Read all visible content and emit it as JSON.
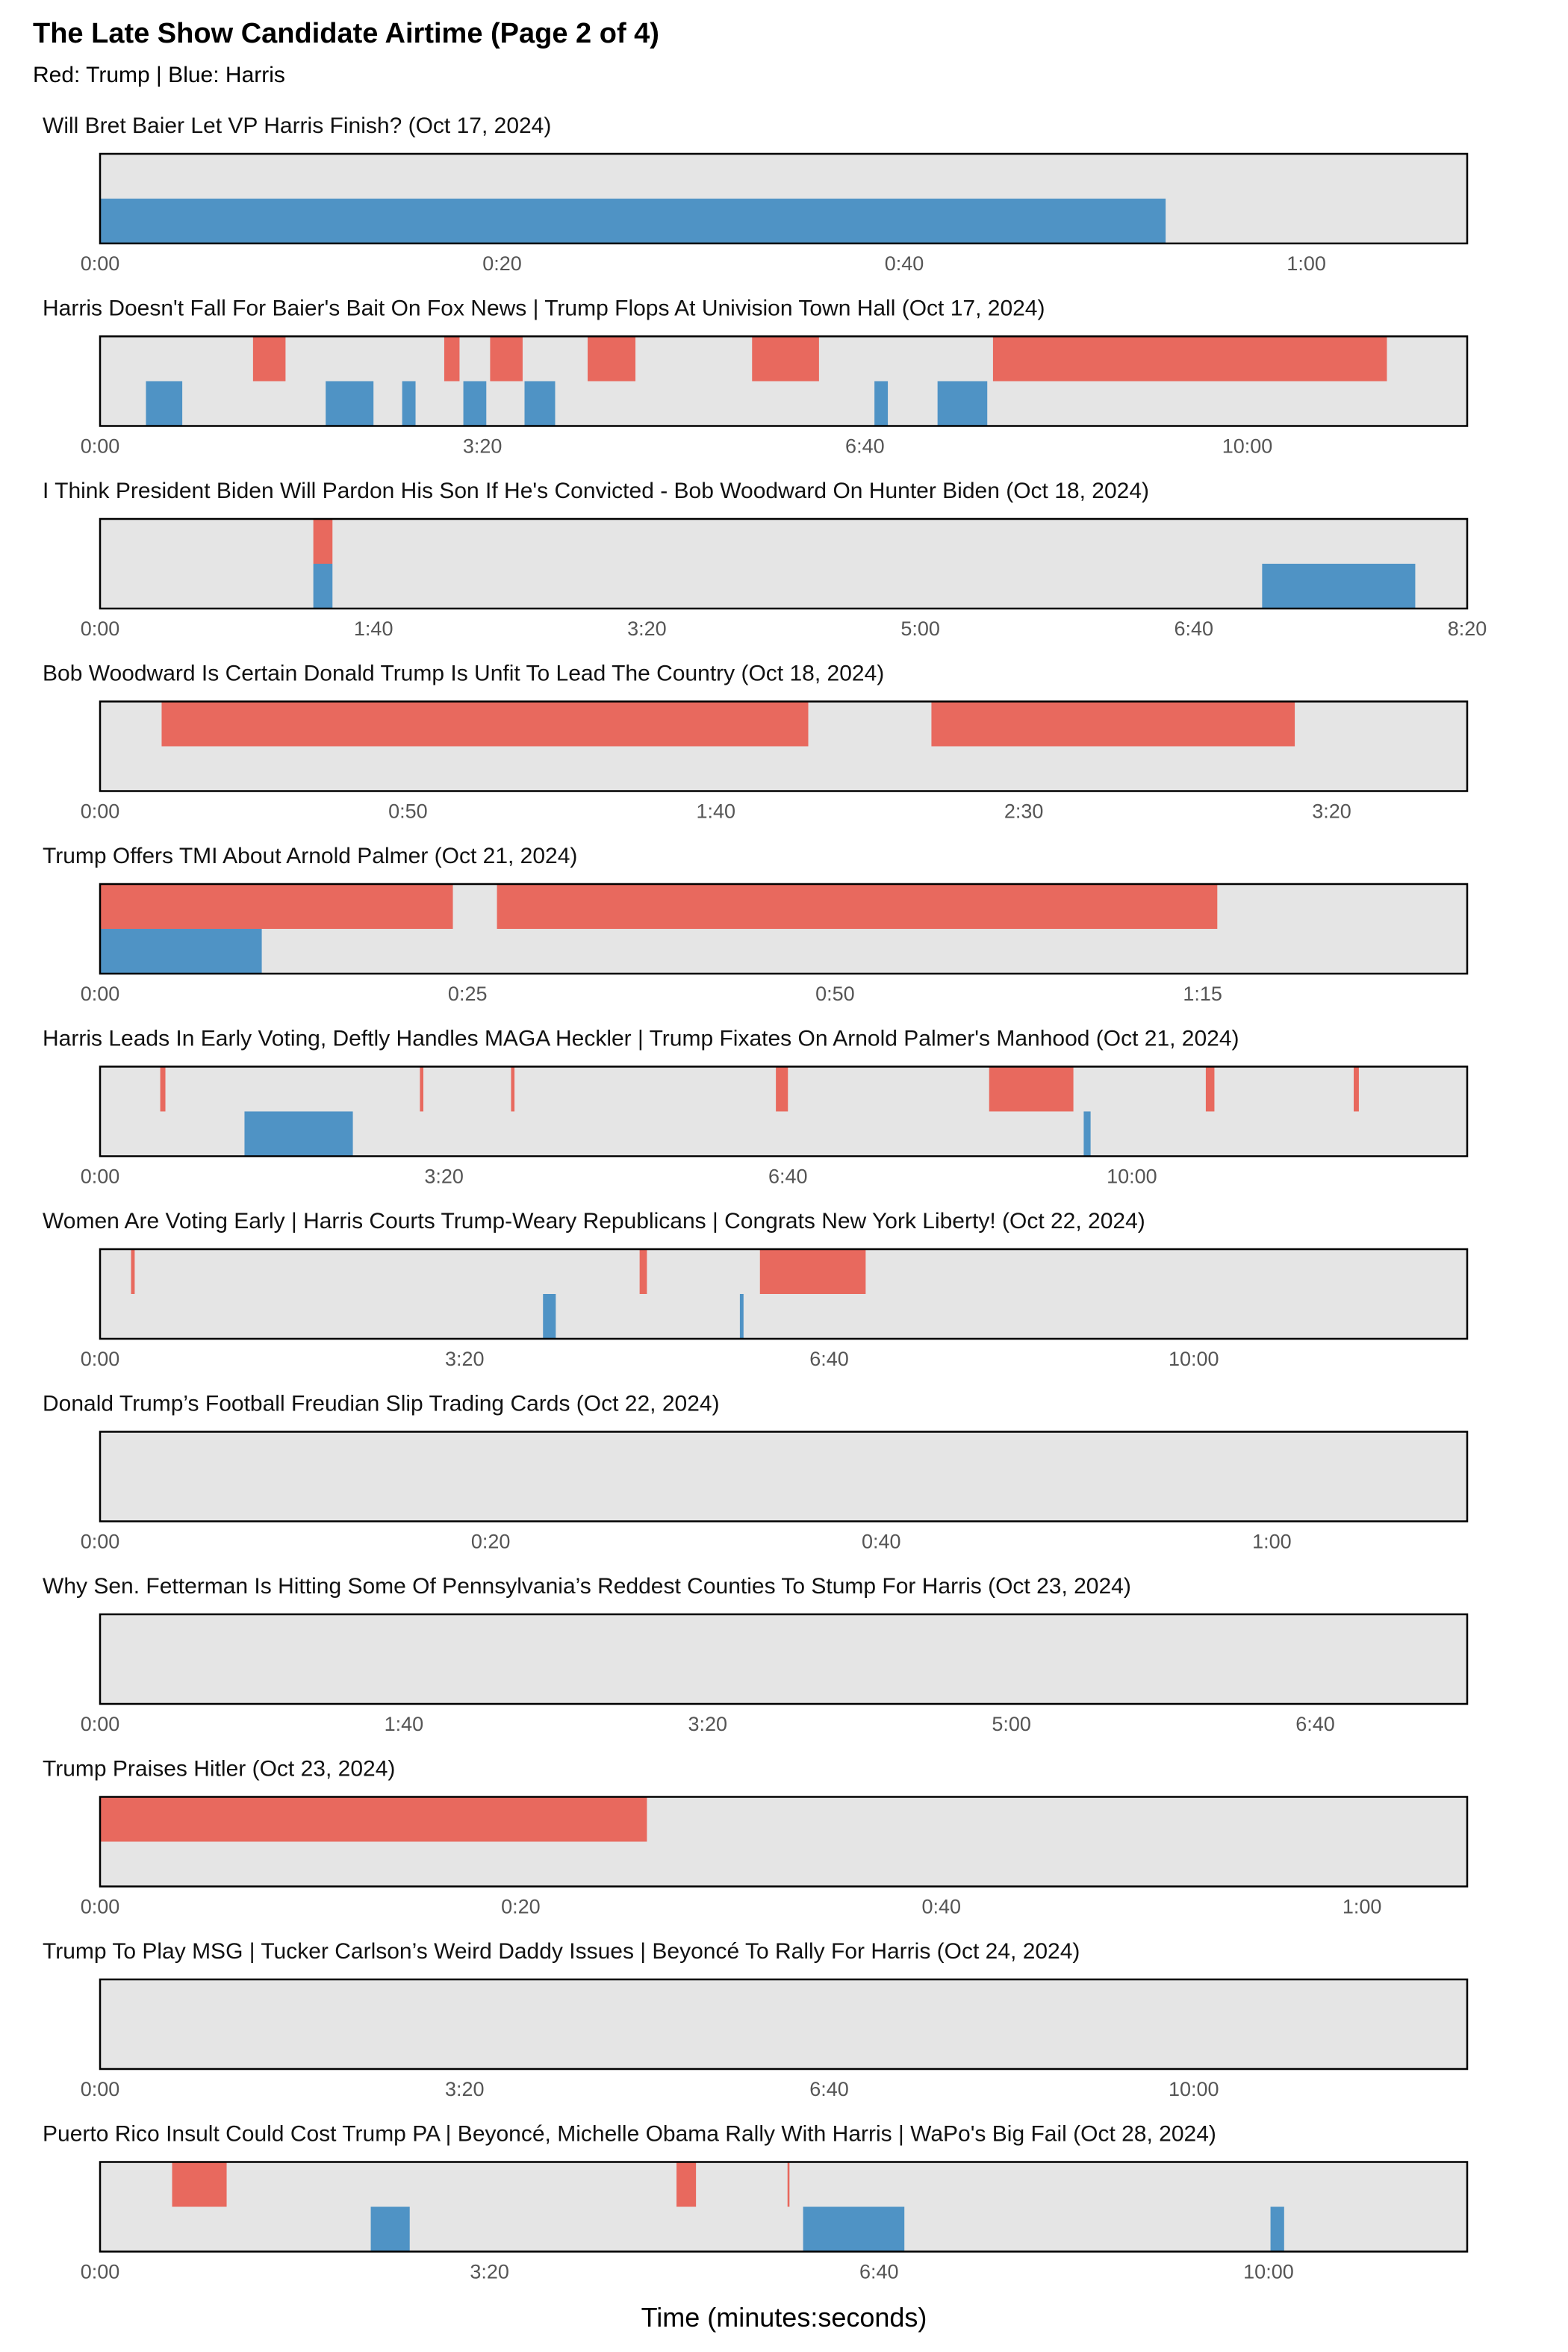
{
  "title": "The Late Show Candidate Airtime (Page 2 of 4)",
  "subtitle": "Red: Trump | Blue: Harris",
  "colors": {
    "trump": "#E8695E",
    "harris": "#4F93C5",
    "panel_bg": "#E5E5E5",
    "border": "#000000",
    "tick_text": "#555555"
  },
  "xlabel": "Time (minutes:seconds)",
  "chart_data": [
    {
      "type": "bar",
      "title": "Will Bret Baier Let VP Harris Finish? (Oct 17, 2024)",
      "xlim": [
        0,
        68
      ],
      "x_ticks": [
        0,
        20,
        40,
        60
      ],
      "x_tick_labels": [
        "0:00",
        "0:20",
        "0:40",
        "1:00"
      ],
      "series": [
        {
          "name": "Trump",
          "segments": []
        },
        {
          "name": "Harris",
          "segments": [
            [
              0,
              53
            ]
          ]
        }
      ]
    },
    {
      "type": "bar",
      "title": "Harris Doesn't Fall For Baier's Bait On Fox News | Trump Flops At Univision Town Hall (Oct 17, 2024)",
      "xlim": [
        0,
        715
      ],
      "x_ticks": [
        0,
        200,
        400,
        600
      ],
      "x_tick_labels": [
        "0:00",
        "3:20",
        "6:40",
        "10:00"
      ],
      "series": [
        {
          "name": "Trump",
          "segments": [
            [
              80,
              97
            ],
            [
              180,
              188
            ],
            [
              204,
              221
            ],
            [
              255,
              280
            ],
            [
              341,
              376
            ],
            [
              467,
              673
            ]
          ]
        },
        {
          "name": "Harris",
          "segments": [
            [
              24,
              43
            ],
            [
              118,
              143
            ],
            [
              158,
              165
            ],
            [
              190,
              202
            ],
            [
              222,
              238
            ],
            [
              405,
              412
            ],
            [
              438,
              464
            ]
          ]
        }
      ]
    },
    {
      "type": "bar",
      "title": "I Think President Biden Will Pardon His Son If He's Convicted - Bob Woodward On Hunter Biden (Oct 18, 2024)",
      "xlim": [
        0,
        500
      ],
      "x_ticks": [
        0,
        100,
        200,
        300,
        400,
        500
      ],
      "x_tick_labels": [
        "0:00",
        "1:40",
        "3:20",
        "5:00",
        "6:40",
        "8:20"
      ],
      "series": [
        {
          "name": "Trump",
          "segments": [
            [
              78,
              85
            ]
          ]
        },
        {
          "name": "Harris",
          "segments": [
            [
              78,
              85
            ],
            [
              425,
              481
            ]
          ]
        }
      ]
    },
    {
      "type": "bar",
      "title": "Bob Woodward Is Certain Donald Trump Is Unfit To Lead The Country (Oct 18, 2024)",
      "xlim": [
        0,
        222
      ],
      "x_ticks": [
        0,
        50,
        100,
        150,
        200
      ],
      "x_tick_labels": [
        "0:00",
        "0:50",
        "1:40",
        "2:30",
        "3:20"
      ],
      "series": [
        {
          "name": "Trump",
          "segments": [
            [
              10,
              115
            ],
            [
              135,
              194
            ]
          ]
        },
        {
          "name": "Harris",
          "segments": []
        }
      ]
    },
    {
      "type": "bar",
      "title": "Trump Offers TMI About Arnold Palmer (Oct 21, 2024)",
      "xlim": [
        0,
        93
      ],
      "x_ticks": [
        0,
        25,
        50,
        75
      ],
      "x_tick_labels": [
        "0:00",
        "0:25",
        "0:50",
        "1:15"
      ],
      "series": [
        {
          "name": "Trump",
          "segments": [
            [
              0,
              24
            ],
            [
              27,
              76
            ]
          ]
        },
        {
          "name": "Harris",
          "segments": [
            [
              0,
              11
            ]
          ]
        }
      ]
    },
    {
      "type": "bar",
      "title": "Harris Leads In Early Voting, Deftly Handles MAGA Heckler | Trump Fixates On Arnold Palmer's Manhood (Oct 21, 2024)",
      "xlim": [
        0,
        795
      ],
      "x_ticks": [
        0,
        200,
        400,
        600
      ],
      "x_tick_labels": [
        "0:00",
        "3:20",
        "6:40",
        "10:00"
      ],
      "series": [
        {
          "name": "Trump",
          "segments": [
            [
              35,
              38
            ],
            [
              186,
              188
            ],
            [
              239,
              241
            ],
            [
              393,
              400
            ],
            [
              517,
              566
            ],
            [
              643,
              648
            ],
            [
              729,
              732
            ]
          ]
        },
        {
          "name": "Harris",
          "segments": [
            [
              84,
              147
            ],
            [
              572,
              576
            ]
          ]
        }
      ]
    },
    {
      "type": "bar",
      "title": "Women Are Voting Early | Harris Courts Trump-Weary Republicans | Congrats New York Liberty! (Oct 22, 2024)",
      "xlim": [
        0,
        750
      ],
      "x_ticks": [
        0,
        200,
        400,
        600
      ],
      "x_tick_labels": [
        "0:00",
        "3:20",
        "6:40",
        "10:00"
      ],
      "series": [
        {
          "name": "Trump",
          "segments": [
            [
              17,
              19
            ],
            [
              296,
              300
            ],
            [
              362,
              420
            ]
          ]
        },
        {
          "name": "Harris",
          "segments": [
            [
              243,
              250
            ],
            [
              351,
              353
            ]
          ]
        }
      ]
    },
    {
      "type": "bar",
      "title": "Donald Trump’s Football Freudian Slip Trading Cards (Oct 22, 2024)",
      "xlim": [
        0,
        70
      ],
      "x_ticks": [
        0,
        20,
        40,
        60
      ],
      "x_tick_labels": [
        "0:00",
        "0:20",
        "0:40",
        "1:00"
      ],
      "series": [
        {
          "name": "Trump",
          "segments": []
        },
        {
          "name": "Harris",
          "segments": []
        }
      ]
    },
    {
      "type": "bar",
      "title": "Why Sen. Fetterman Is Hitting Some Of Pennsylvania’s Reddest Counties To Stump For Harris (Oct 23, 2024)",
      "xlim": [
        0,
        450
      ],
      "x_ticks": [
        0,
        100,
        200,
        300,
        400
      ],
      "x_tick_labels": [
        "0:00",
        "1:40",
        "3:20",
        "5:00",
        "6:40"
      ],
      "series": [
        {
          "name": "Trump",
          "segments": []
        },
        {
          "name": "Harris",
          "segments": []
        }
      ]
    },
    {
      "type": "bar",
      "title": "Trump Praises Hitler (Oct 23, 2024)",
      "xlim": [
        0,
        65
      ],
      "x_ticks": [
        0,
        20,
        40,
        60
      ],
      "x_tick_labels": [
        "0:00",
        "0:20",
        "0:40",
        "1:00"
      ],
      "series": [
        {
          "name": "Trump",
          "segments": [
            [
              0,
              26
            ]
          ]
        },
        {
          "name": "Harris",
          "segments": []
        }
      ]
    },
    {
      "type": "bar",
      "title": "Trump To Play MSG | Tucker Carlson’s Weird Daddy Issues | Beyoncé To Rally For Harris (Oct 24, 2024)",
      "xlim": [
        0,
        750
      ],
      "x_ticks": [
        0,
        200,
        400,
        600
      ],
      "x_tick_labels": [
        "0:00",
        "3:20",
        "6:40",
        "10:00"
      ],
      "series": [
        {
          "name": "Trump",
          "segments": []
        },
        {
          "name": "Harris",
          "segments": []
        }
      ]
    },
    {
      "type": "bar",
      "title": "Puerto Rico Insult Could Cost Trump PA | Beyoncé, Michelle Obama Rally With Harris | WaPo's Big Fail (Oct 28, 2024)",
      "xlim": [
        0,
        702
      ],
      "x_ticks": [
        0,
        200,
        400,
        600
      ],
      "x_tick_labels": [
        "0:00",
        "3:20",
        "6:40",
        "10:00"
      ],
      "series": [
        {
          "name": "Trump",
          "segments": [
            [
              37,
              65
            ],
            [
              296,
              306
            ],
            [
              353,
              354
            ]
          ]
        },
        {
          "name": "Harris",
          "segments": [
            [
              139,
              159
            ],
            [
              361,
              413
            ],
            [
              601,
              608
            ]
          ]
        }
      ]
    }
  ]
}
